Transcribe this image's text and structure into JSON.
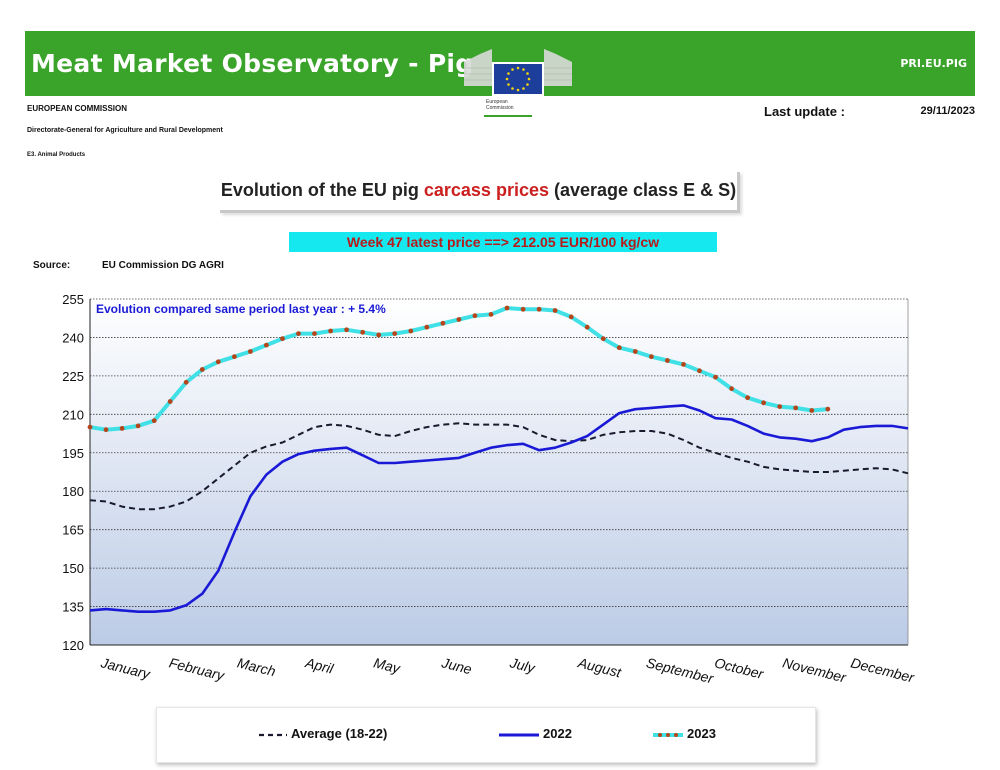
{
  "header": {
    "title": "Meat Market Observatory - Pig",
    "code": "PRI.EU.PIG",
    "org": "EUROPEAN COMMISSION",
    "directorate": "Directorate-General for Agriculture and Rural Development",
    "unit": "E3. Animal Products",
    "logo_text_1": "European",
    "logo_text_2": "Commission",
    "last_update_label": "Last update :",
    "last_update_date": "29/11/2023"
  },
  "colors": {
    "banner": "#3aa32a",
    "avg": "#1a1a2e",
    "y2022": "#1a1ad6",
    "y2023_line": "#3fe0e6",
    "y2023_marker": "#b5451b",
    "annotation": "#1a1ad6"
  },
  "chart_title": {
    "prefix": "Evolution of the EU pig ",
    "highlight": "carcass prices",
    "suffix": " (average class E & S)"
  },
  "latest_price": "Week 47 latest price ==>  212.05 EUR/100 kg/cw",
  "source_label": "Source:",
  "source_value": "EU Commission DG AGRI",
  "chart_data": {
    "type": "line",
    "title": "Evolution of the EU pig carcass prices (average class E & S)",
    "annotation": "Evolution compared same period last year   : + 5.4%",
    "xlabel": "",
    "ylabel": "",
    "ylim": [
      120,
      255
    ],
    "yticks": [
      120,
      135,
      150,
      165,
      180,
      195,
      210,
      225,
      240,
      255
    ],
    "grid": true,
    "legend_position": "bottom",
    "x_range": [
      1,
      52
    ],
    "months": [
      "January",
      "February",
      "March",
      "April",
      "May",
      "June",
      "July",
      "August",
      "September",
      "October",
      "November",
      "December"
    ],
    "series": [
      {
        "name": "Average (18-22)",
        "style": "dashed",
        "x": [
          1,
          2,
          3,
          4,
          5,
          6,
          7,
          8,
          9,
          10,
          11,
          12,
          13,
          14,
          15,
          16,
          17,
          18,
          19,
          20,
          21,
          22,
          23,
          24,
          25,
          26,
          27,
          28,
          29,
          30,
          31,
          32,
          33,
          34,
          35,
          36,
          37,
          38,
          39,
          40,
          41,
          42,
          43,
          44,
          45,
          46,
          47,
          48,
          49,
          50,
          51,
          52
        ],
        "values": [
          176.5,
          176,
          174,
          173,
          173,
          174,
          176,
          180,
          185,
          190,
          195,
          197.5,
          199,
          202,
          205,
          206,
          205.5,
          204,
          202,
          201.5,
          203.5,
          205,
          206,
          206.5,
          206,
          206,
          206,
          205,
          202,
          200,
          199.5,
          200,
          202,
          203,
          203.5,
          203.5,
          202.5,
          200,
          197,
          195,
          193,
          191.5,
          189.5,
          188.5,
          188,
          187.5,
          187.5,
          188,
          188.5,
          189,
          188.5,
          187
        ]
      },
      {
        "name": "2022",
        "style": "solid",
        "x": [
          1,
          2,
          3,
          4,
          5,
          6,
          7,
          8,
          9,
          10,
          11,
          12,
          13,
          14,
          15,
          16,
          17,
          18,
          19,
          20,
          21,
          22,
          23,
          24,
          25,
          26,
          27,
          28,
          29,
          30,
          31,
          32,
          33,
          34,
          35,
          36,
          37,
          38,
          39,
          40,
          41,
          42,
          43,
          44,
          45,
          46,
          47,
          48,
          49,
          50,
          51,
          52
        ],
        "values": [
          133.5,
          134,
          133.5,
          133,
          133,
          133.5,
          135.5,
          140,
          149,
          164,
          178,
          186.5,
          191.5,
          194.5,
          195.8,
          196.5,
          197,
          194,
          191,
          191,
          191.5,
          192,
          192.5,
          193,
          195,
          197,
          198,
          198.5,
          196,
          197,
          199,
          201.5,
          206,
          210.5,
          212,
          212.5,
          213,
          213.5,
          211.5,
          208.5,
          208,
          205.5,
          202.5,
          201,
          200.5,
          199.5,
          201,
          204,
          205,
          205.5,
          205.5,
          204.5
        ]
      },
      {
        "name": "2023",
        "style": "solid-markers",
        "x": [
          1,
          2,
          3,
          4,
          5,
          6,
          7,
          8,
          9,
          10,
          11,
          12,
          13,
          14,
          15,
          16,
          17,
          18,
          19,
          20,
          21,
          22,
          23,
          24,
          25,
          26,
          27,
          28,
          29,
          30,
          31,
          32,
          33,
          34,
          35,
          36,
          37,
          38,
          39,
          40,
          41,
          42,
          43,
          44,
          45,
          46,
          47
        ],
        "values": [
          205,
          204,
          204.5,
          205.5,
          207.5,
          215,
          222.5,
          227.5,
          230.5,
          232.5,
          234.5,
          237,
          239.5,
          241.5,
          241.5,
          242.5,
          243,
          242,
          241,
          241.5,
          242.5,
          244,
          245.5,
          247,
          248.5,
          249,
          251.5,
          251,
          251,
          250.5,
          248,
          244,
          239.5,
          236,
          234.5,
          232.5,
          231,
          229.5,
          227,
          224.5,
          220,
          216.5,
          214.5,
          213,
          212.5,
          211.5,
          212.05
        ]
      }
    ]
  }
}
